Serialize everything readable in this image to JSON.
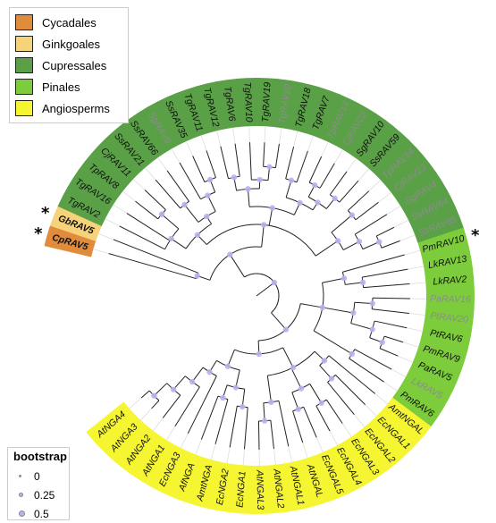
{
  "colors": {
    "Cycadales": "#e08c3b",
    "Ginkgoales": "#f6d27a",
    "Cupressales": "#5aa047",
    "Pinales": "#7ccc3c",
    "Angiosperms": "#f5f531",
    "node": "#b9b3ee"
  },
  "legend": [
    {
      "label": "Cycadales",
      "color_key": "Cycadales"
    },
    {
      "label": "Ginkgoales",
      "color_key": "Ginkgoales"
    },
    {
      "label": "Cupressales",
      "color_key": "Cupressales"
    },
    {
      "label": "Pinales",
      "color_key": "Pinales"
    },
    {
      "label": "Angiosperms",
      "color_key": "Angiosperms"
    }
  ],
  "bootstrap_legend": {
    "title": "bootstrap",
    "items": [
      "0",
      "0.25",
      "0.5"
    ]
  },
  "leaves": [
    {
      "label": "CpRAV5",
      "clade": "Cycadales",
      "style": "bold",
      "star": true
    },
    {
      "label": "GbRAV5",
      "clade": "Ginkgoales",
      "style": "bold",
      "star": true
    },
    {
      "label": "TgRAV2",
      "clade": "Cupressales",
      "style": "normal"
    },
    {
      "label": "TgRAV16",
      "clade": "Cupressales",
      "style": "normal"
    },
    {
      "label": "TpRAV8",
      "clade": "Cupressales",
      "style": "normal"
    },
    {
      "label": "CjRAV11",
      "clade": "Cupressales",
      "style": "normal"
    },
    {
      "label": "SsRAV21",
      "clade": "Cupressales",
      "style": "normal"
    },
    {
      "label": "SsRAV66",
      "clade": "Cupressales",
      "style": "normal",
      "star": true
    },
    {
      "label": "SgRAV9",
      "clade": "Cupressales",
      "style": "grey"
    },
    {
      "label": "SsRAV35",
      "clade": "Cupressales",
      "style": "normal"
    },
    {
      "label": "TgRAV11",
      "clade": "Cupressales",
      "style": "normal"
    },
    {
      "label": "TgRAV12",
      "clade": "Cupressales",
      "style": "normal"
    },
    {
      "label": "TgRAV6",
      "clade": "Cupressales",
      "style": "normal"
    },
    {
      "label": "TgRAV10",
      "clade": "Cupressales",
      "style": "normal"
    },
    {
      "label": "TgRAV19",
      "clade": "Cupressales",
      "style": "normal"
    },
    {
      "label": "TgRAV20",
      "clade": "Cupressales",
      "style": "grey"
    },
    {
      "label": "TgRAV18",
      "clade": "Cupressales",
      "style": "normal"
    },
    {
      "label": "TgRAV7",
      "clade": "Cupressales",
      "style": "normal"
    },
    {
      "label": "TpRAV13",
      "clade": "Cupressales",
      "style": "grey"
    },
    {
      "label": "CjRAV22",
      "clade": "Cupressales",
      "style": "grey"
    },
    {
      "label": "SgRAV10",
      "clade": "Cupressales",
      "style": "normal"
    },
    {
      "label": "SsRAV59",
      "clade": "Cupressales",
      "style": "normal"
    },
    {
      "label": "TpRAV14",
      "clade": "Cupressales",
      "style": "grey"
    },
    {
      "label": "CjRAV23",
      "clade": "Cupressales",
      "style": "grey"
    },
    {
      "label": "SgRAV4",
      "clade": "Cupressales",
      "style": "grey"
    },
    {
      "label": "SsRAV64",
      "clade": "Cupressales",
      "style": "grey"
    },
    {
      "label": "SsRAV65",
      "clade": "Cupressales",
      "style": "grey"
    },
    {
      "label": "PmRAV10",
      "clade": "Pinales",
      "style": "normal",
      "star": true
    },
    {
      "label": "LkRAV13",
      "clade": "Pinales",
      "style": "normal"
    },
    {
      "label": "LkRAV2",
      "clade": "Pinales",
      "style": "normal"
    },
    {
      "label": "PaRAV16",
      "clade": "Pinales",
      "style": "grey"
    },
    {
      "label": "PtRAV20",
      "clade": "Pinales",
      "style": "grey"
    },
    {
      "label": "PtRAV6",
      "clade": "Pinales",
      "style": "normal"
    },
    {
      "label": "PmRAV9",
      "clade": "Pinales",
      "style": "normal"
    },
    {
      "label": "PaRAV5",
      "clade": "Pinales",
      "style": "normal"
    },
    {
      "label": "LkRAV5",
      "clade": "Pinales",
      "style": "grey"
    },
    {
      "label": "PmRAV6",
      "clade": "Pinales",
      "style": "normal"
    },
    {
      "label": "AmtNGAL",
      "clade": "Angiosperms",
      "style": "normal"
    },
    {
      "label": "EcNGAL1",
      "clade": "Angiosperms",
      "style": "normal"
    },
    {
      "label": "EcNGAL2",
      "clade": "Angiosperms",
      "style": "normal"
    },
    {
      "label": "EcNGAL3",
      "clade": "Angiosperms",
      "style": "normal"
    },
    {
      "label": "EcNGAL4",
      "clade": "Angiosperms",
      "style": "normal"
    },
    {
      "label": "EcNGAL5",
      "clade": "Angiosperms",
      "style": "normal"
    },
    {
      "label": "AtNGAL",
      "clade": "Angiosperms",
      "style": "normal"
    },
    {
      "label": "AtNGAL1",
      "clade": "Angiosperms",
      "style": "normal"
    },
    {
      "label": "AtNGAL2",
      "clade": "Angiosperms",
      "style": "normal"
    },
    {
      "label": "AtNGAL3",
      "clade": "Angiosperms",
      "style": "normal"
    },
    {
      "label": "EcNGA1",
      "clade": "Angiosperms",
      "style": "normal"
    },
    {
      "label": "EcNGA2",
      "clade": "Angiosperms",
      "style": "normal"
    },
    {
      "label": "AmtNGA",
      "clade": "Angiosperms",
      "style": "normal"
    },
    {
      "label": "AfNGA",
      "clade": "Angiosperms",
      "style": "normal"
    },
    {
      "label": "EcNGA3",
      "clade": "Angiosperms",
      "style": "normal"
    },
    {
      "label": "AtNGA1",
      "clade": "Angiosperms",
      "style": "normal"
    },
    {
      "label": "AtNGA2",
      "clade": "Angiosperms",
      "style": "normal"
    },
    {
      "label": "AtNGA3",
      "clade": "Angiosperms",
      "style": "normal"
    },
    {
      "label": "AtNGA4",
      "clade": "Angiosperms",
      "style": "normal"
    }
  ]
}
